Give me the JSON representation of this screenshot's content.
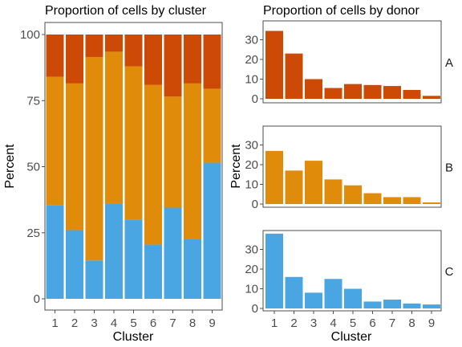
{
  "chart_data": [
    {
      "type": "bar",
      "stacked": true,
      "title": "Proportion of cells by cluster",
      "xlabel": "Cluster",
      "ylabel": "Percent",
      "categories": [
        "1",
        "2",
        "3",
        "4",
        "5",
        "6",
        "7",
        "8",
        "9"
      ],
      "ylim": [
        0,
        100
      ],
      "yticks": [
        "0",
        "25",
        "50",
        "75",
        "100"
      ],
      "series": [
        {
          "key": "c",
          "color": "#4aa5e3",
          "values": [
            35.5,
            26,
            14.5,
            36,
            30,
            20.5,
            34.5,
            22.5,
            51.5
          ]
        },
        {
          "key": "b",
          "color": "#e08b0a",
          "values": [
            48.5,
            55.5,
            77,
            57.5,
            58,
            60.5,
            42,
            59,
            28
          ]
        },
        {
          "key": "a",
          "color": "#cc4a06",
          "values": [
            16,
            18.5,
            8.5,
            6.5,
            12,
            19,
            23.5,
            18.5,
            20.5
          ]
        }
      ],
      "grid": false
    },
    {
      "type": "bar",
      "facetted": true,
      "title": "Proportion of cells by donor",
      "xlabel": "Cluster",
      "ylabel": "Percent",
      "categories": [
        "1",
        "2",
        "3",
        "4",
        "5",
        "6",
        "7",
        "8",
        "9"
      ],
      "ylim": [
        0,
        40
      ],
      "yticks": [
        "0",
        "10",
        "20",
        "30"
      ],
      "facets": [
        {
          "label": "A",
          "color": "#cc4a06",
          "values": [
            34.5,
            23,
            10,
            5.5,
            7.5,
            7,
            6.5,
            4.5,
            1.5
          ]
        },
        {
          "label": "B",
          "color": "#e08b0a",
          "values": [
            27,
            17,
            22,
            12.5,
            9.5,
            5.5,
            3.5,
            3.5,
            0.8
          ]
        },
        {
          "label": "C",
          "color": "#4aa5e3",
          "values": [
            38,
            16,
            8,
            15,
            10,
            3.5,
            4.5,
            2.5,
            2
          ]
        }
      ],
      "grid": false
    }
  ]
}
